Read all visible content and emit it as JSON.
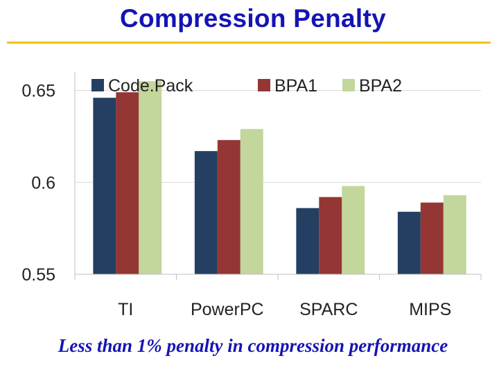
{
  "slide": {
    "title": "Compression Penalty",
    "footer": "Less than 1% penalty in compression performance"
  },
  "chart_data": {
    "type": "bar",
    "title": "",
    "xlabel": "",
    "ylabel": "",
    "categories": [
      "TI",
      "PowerPC",
      "SPARC",
      "MIPS"
    ],
    "series": [
      {
        "name": "Code.Pack",
        "color": "#243f62",
        "values": [
          0.646,
          0.617,
          0.586,
          0.584
        ]
      },
      {
        "name": "BPA1",
        "color": "#943634",
        "values": [
          0.649,
          0.623,
          0.592,
          0.589
        ]
      },
      {
        "name": "BPA2",
        "color": "#c3d69b",
        "values": [
          0.655,
          0.629,
          0.598,
          0.593
        ]
      }
    ],
    "ylim": [
      0.55,
      0.66
    ],
    "yticks": [
      {
        "value": 0.55,
        "label": "0.55"
      },
      {
        "value": 0.6,
        "label": "0.6"
      },
      {
        "value": 0.65,
        "label": "0.65"
      }
    ],
    "grid": true,
    "legend": "top"
  }
}
